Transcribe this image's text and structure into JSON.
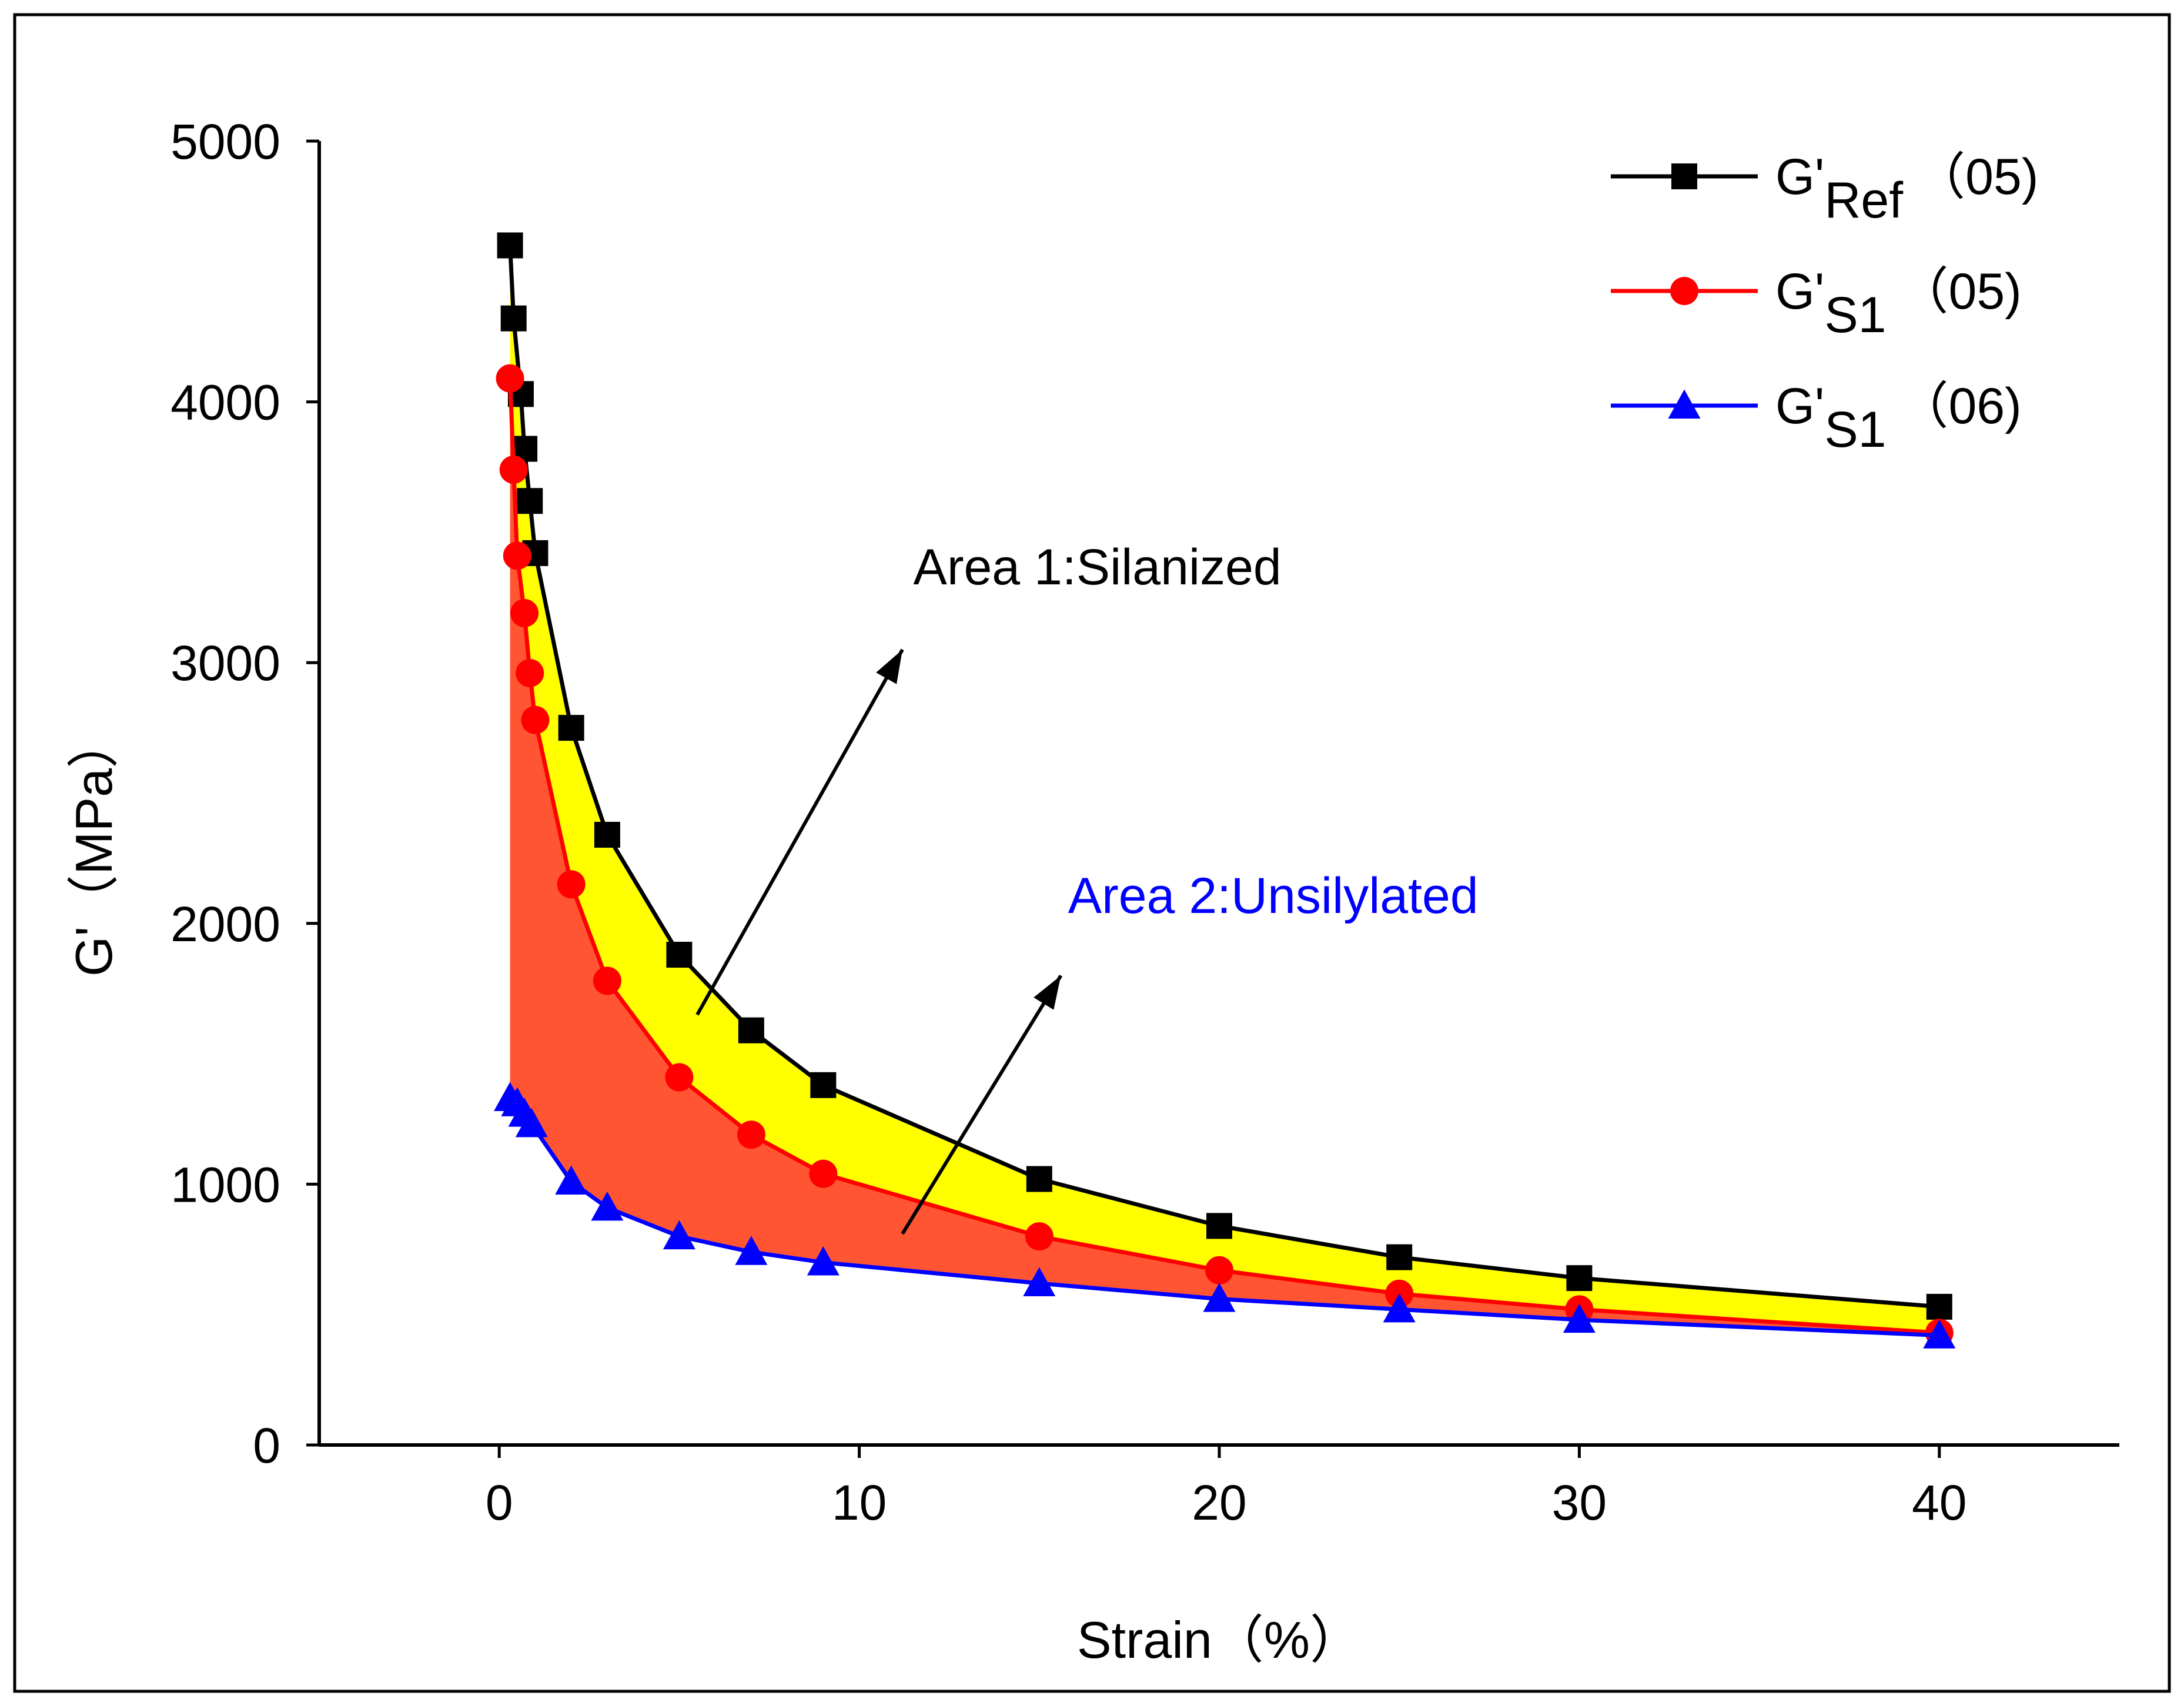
{
  "chart_data": {
    "type": "line",
    "title": "",
    "xlabel": "Strain（%）",
    "ylabel": "G'（MPa）",
    "xlim": [
      -5,
      45
    ],
    "ylim": [
      0,
      5000
    ],
    "xticks": [
      0,
      10,
      20,
      30,
      40
    ],
    "yticks": [
      0,
      1000,
      2000,
      3000,
      4000,
      5000
    ],
    "grid": false,
    "legend_position": "top-right",
    "series": [
      {
        "name": "G'Ref（05)",
        "legend": {
          "base": "G'",
          "sub": "Ref",
          "suffix": "（05)"
        },
        "color": "#000000",
        "marker": "square",
        "x": [
          0.3,
          0.4,
          0.6,
          0.7,
          0.85,
          1.0,
          2.0,
          3.0,
          5.0,
          7.0,
          9.0,
          15.0,
          20.0,
          25.0,
          30.0,
          40.0
        ],
        "y": [
          4600,
          4320,
          4030,
          3820,
          3620,
          3420,
          2750,
          2340,
          1880,
          1590,
          1380,
          1020,
          840,
          720,
          640,
          530
        ]
      },
      {
        "name": "G'S1（05)",
        "legend": {
          "base": "G'",
          "sub": "S1",
          "suffix": "（05)"
        },
        "color": "#ff0000",
        "marker": "circle",
        "x": [
          0.3,
          0.4,
          0.5,
          0.7,
          0.85,
          1.0,
          2.0,
          3.0,
          5.0,
          7.0,
          9.0,
          15.0,
          20.0,
          25.0,
          30.0,
          40.0
        ],
        "y": [
          4090,
          3740,
          3410,
          3190,
          2960,
          2780,
          2150,
          1780,
          1410,
          1190,
          1040,
          800,
          670,
          580,
          520,
          430
        ]
      },
      {
        "name": "G'S1（06)",
        "legend": {
          "base": "G'",
          "sub": "S1",
          "suffix": "（06)"
        },
        "color": "#0000ff",
        "marker": "triangle",
        "x": [
          0.3,
          0.5,
          0.7,
          0.9,
          2.0,
          3.0,
          5.0,
          7.0,
          9.0,
          15.0,
          20.0,
          25.0,
          30.0,
          40.0
        ],
        "y": [
          1330,
          1310,
          1270,
          1230,
          1010,
          910,
          800,
          740,
          700,
          620,
          560,
          520,
          480,
          420
        ]
      }
    ],
    "fills": [
      {
        "name": "area-1-silanized",
        "between": [
          0,
          1
        ],
        "color": "#ffff00"
      },
      {
        "name": "area-2-unsilylated",
        "between": [
          1,
          2
        ],
        "color": "#ff5533"
      }
    ],
    "annotations": [
      {
        "text": "Area 1:Silanized",
        "color": "#000000",
        "at": [
          11.5,
          3300
        ],
        "arrow_from": [
          5.5,
          1650
        ],
        "arrow_to": [
          11.2,
          3050
        ]
      },
      {
        "text": "Area 2:Unsilylated",
        "color": "#0000ff",
        "at": [
          15.8,
          2040
        ],
        "arrow_from": [
          11.2,
          810
        ],
        "arrow_to": [
          15.6,
          1800
        ]
      }
    ]
  }
}
